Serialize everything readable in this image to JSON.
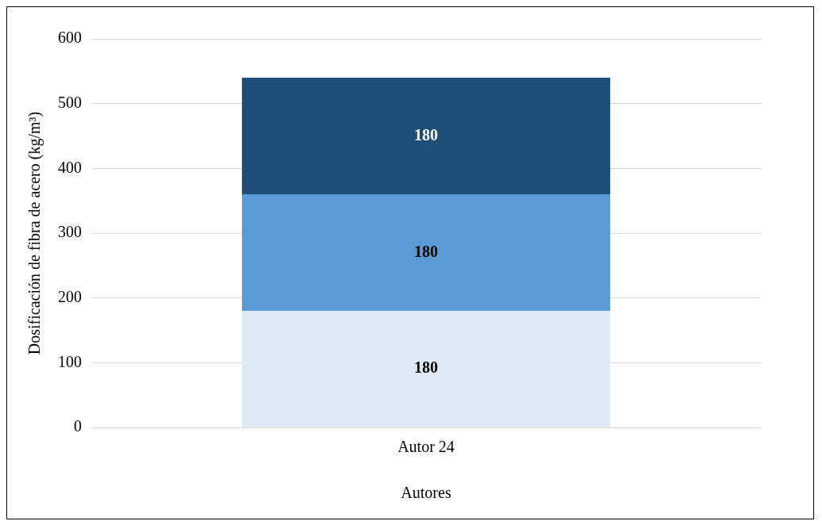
{
  "chart_data": {
    "type": "bar",
    "stacked": true,
    "xlabel": "Autores",
    "ylabel": "Dosificación de fibra de acero (kg/m³)",
    "categories": [
      "Autor 24"
    ],
    "series": [
      {
        "color": "#deebf7",
        "values": [
          180
        ]
      },
      {
        "color": "#5b9bd5",
        "values": [
          180
        ]
      },
      {
        "color": "#1f4e79",
        "values": [
          180
        ]
      }
    ],
    "ylim": [
      0,
      600
    ],
    "yticks": [
      0,
      100,
      200,
      300,
      400,
      500,
      600
    ],
    "grid": "y",
    "data_labels": true,
    "legend": false
  }
}
